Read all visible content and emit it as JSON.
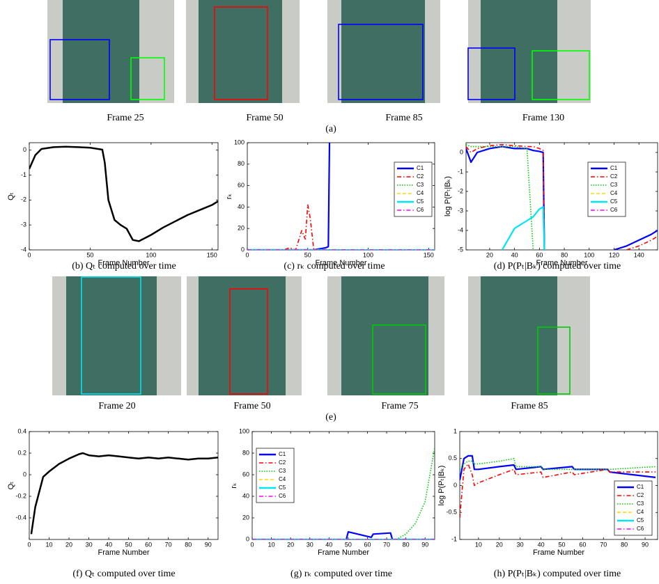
{
  "figure": {
    "row_a": {
      "frames": [
        "Frame 25",
        "Frame 50",
        "Frame 85",
        "Frame 130"
      ],
      "label": "(a)"
    },
    "row_e": {
      "frames": [
        "Frame 20",
        "Frame 50",
        "Frame 75",
        "Frame 85"
      ],
      "label": "(e)"
    }
  },
  "chart_data": [
    {
      "type": "line",
      "caption": "(b) Qₜ computed over time",
      "xlabel": "Frame Number",
      "ylabel": "Qₜ",
      "xlim": [
        0,
        155
      ],
      "ylim": [
        -4,
        0.3
      ],
      "xticks": [
        0,
        50,
        100,
        150
      ],
      "yticks": [
        -4,
        -3,
        -2,
        -1,
        0
      ],
      "x": [
        0,
        5,
        10,
        20,
        30,
        40,
        50,
        60,
        62,
        65,
        70,
        75,
        80,
        85,
        90,
        100,
        110,
        120,
        130,
        140,
        150,
        155
      ],
      "series": [
        {
          "name": null,
          "color": "#000000",
          "style": "solid",
          "values": [
            -0.75,
            -0.2,
            0.05,
            0.12,
            0.14,
            0.12,
            0.1,
            0.02,
            -0.5,
            -2.0,
            -2.8,
            -3.0,
            -3.15,
            -3.6,
            -3.65,
            -3.4,
            -3.1,
            -2.85,
            -2.6,
            -2.4,
            -2.2,
            -2.05
          ]
        }
      ]
    },
    {
      "type": "line",
      "caption": "(c) rₖ computed over time",
      "xlabel": "Frame Number",
      "ylabel": "rₖ",
      "xlim": [
        0,
        155
      ],
      "ylim": [
        0,
        100
      ],
      "xticks": [
        0,
        50,
        100,
        150
      ],
      "yticks": [
        0,
        20,
        40,
        60,
        80,
        100
      ],
      "legend": "right",
      "x": [
        0,
        30,
        35,
        40,
        45,
        48,
        50,
        52,
        55,
        60,
        65,
        67,
        68,
        70,
        100,
        155
      ],
      "series": [
        {
          "name": "C1",
          "color": "#0000ff",
          "style": "solid",
          "values": [
            0,
            0,
            0,
            0,
            0,
            0,
            0,
            0,
            0,
            1,
            2,
            3,
            100,
            null,
            null,
            null
          ]
        },
        {
          "name": "C2",
          "color": "#ff0000",
          "style": "dashdot",
          "values": [
            0,
            0,
            2,
            0,
            18,
            10,
            42,
            30,
            0,
            0,
            0,
            0,
            0,
            0,
            0,
            0
          ]
        },
        {
          "name": "C3",
          "color": "#00cc00",
          "style": "dotted",
          "values": [
            0,
            0,
            0,
            0,
            0,
            0,
            0,
            0,
            0,
            0,
            0,
            0,
            0,
            0,
            0,
            0
          ]
        },
        {
          "name": "C4",
          "color": "#ffd700",
          "style": "dashed",
          "values": [
            0,
            0,
            0,
            0,
            0,
            0,
            0,
            0,
            0,
            0,
            0,
            0,
            0,
            0,
            0,
            0
          ]
        },
        {
          "name": "C5",
          "color": "#00e5ee",
          "style": "solid",
          "values": [
            0,
            0,
            0,
            0,
            0,
            0,
            0,
            0,
            0,
            0,
            0,
            0,
            0,
            0,
            0,
            0
          ]
        },
        {
          "name": "C6",
          "color": "#ff00ff",
          "style": "dashdot",
          "values": [
            0,
            0,
            0,
            0,
            0,
            0,
            0,
            0,
            0,
            0,
            0,
            0,
            0,
            0,
            0,
            0
          ]
        }
      ]
    },
    {
      "type": "line",
      "caption": "(d) P(Pₜ|Bₖ) computed over time",
      "xlabel": "Frame Number",
      "ylabel": "log P(Pₜ|Bₖ)",
      "xlim": [
        1,
        155
      ],
      "ylim": [
        -5,
        0.5
      ],
      "xticks": [
        20,
        40,
        60,
        80,
        100,
        120,
        140
      ],
      "yticks": [
        -5,
        -4,
        -3,
        -2,
        -1,
        0
      ],
      "legend": "right",
      "x": [
        1,
        5,
        10,
        20,
        30,
        40,
        50,
        55,
        60,
        63,
        64,
        65,
        120,
        130,
        140,
        150,
        155
      ],
      "series": [
        {
          "name": "C1",
          "color": "#0000ff",
          "style": "solid",
          "values": [
            0.2,
            -0.5,
            0.0,
            0.2,
            0.3,
            0.2,
            0.2,
            0.1,
            0.05,
            0,
            -5,
            null,
            -5,
            -4.8,
            -4.5,
            -4.2,
            -4.0
          ]
        },
        {
          "name": "C2",
          "color": "#ff0000",
          "style": "dashdot",
          "values": [
            0.3,
            0,
            0.2,
            0.35,
            0.4,
            0.35,
            0.3,
            0.3,
            0.2,
            0.1,
            -5,
            null,
            null,
            -5,
            -4.8,
            -4.5,
            -4.3
          ]
        },
        {
          "name": "C3",
          "color": "#00cc00",
          "style": "dotted",
          "values": [
            0.4,
            0.3,
            0.3,
            0.3,
            0.3,
            0.3,
            0.2,
            -5,
            null,
            null,
            null,
            null,
            null,
            null,
            null,
            null,
            null
          ]
        },
        {
          "name": "C4",
          "color": "#ffd700",
          "style": "dashed",
          "values": [
            null,
            null,
            null,
            null,
            -5,
            -3.9,
            -3.5,
            -3.3,
            -2.9,
            -2.8,
            -5,
            null,
            null,
            null,
            null,
            null,
            null
          ]
        },
        {
          "name": "C5",
          "color": "#00e5ee",
          "style": "solid",
          "values": [
            null,
            null,
            null,
            null,
            -5,
            -3.9,
            -3.5,
            -3.3,
            -2.9,
            -2.8,
            -5,
            null,
            null,
            null,
            null,
            null,
            null
          ]
        },
        {
          "name": "C6",
          "color": "#ff00ff",
          "style": "dashdot",
          "values": [
            null,
            null,
            null,
            null,
            null,
            null,
            null,
            null,
            null,
            null,
            null,
            null,
            null,
            null,
            null,
            null,
            null
          ]
        }
      ]
    },
    {
      "type": "line",
      "caption": "(f) Qₜ computed over time",
      "xlabel": "Frame Number",
      "ylabel": "Qₜ",
      "xlim": [
        0,
        95
      ],
      "ylim": [
        -0.6,
        0.4
      ],
      "xticks": [
        0,
        10,
        20,
        30,
        40,
        50,
        60,
        70,
        80,
        90
      ],
      "yticks": [
        -0.4,
        -0.2,
        0,
        0.2,
        0.4
      ],
      "x": [
        1,
        3,
        7,
        10,
        15,
        20,
        25,
        27,
        30,
        35,
        40,
        45,
        50,
        55,
        60,
        65,
        70,
        75,
        80,
        85,
        90,
        95
      ],
      "series": [
        {
          "name": null,
          "color": "#000000",
          "style": "solid",
          "values": [
            -0.55,
            -0.3,
            -0.02,
            0.03,
            0.1,
            0.15,
            0.19,
            0.2,
            0.18,
            0.17,
            0.18,
            0.17,
            0.16,
            0.15,
            0.16,
            0.15,
            0.16,
            0.15,
            0.14,
            0.15,
            0.15,
            0.16
          ]
        }
      ]
    },
    {
      "type": "line",
      "caption": "(g) rₖ computed over time",
      "xlabel": "Frame Number",
      "ylabel": "rₖ",
      "xlim": [
        0,
        95
      ],
      "ylim": [
        0,
        100
      ],
      "xticks": [
        0,
        10,
        20,
        30,
        40,
        50,
        60,
        70,
        80,
        90
      ],
      "yticks": [
        0,
        20,
        40,
        60,
        80,
        100
      ],
      "legend": "upper left",
      "x": [
        0,
        49,
        50,
        62,
        63,
        72,
        73,
        75,
        80,
        85,
        90,
        95
      ],
      "series": [
        {
          "name": "C1",
          "color": "#0000ff",
          "style": "solid",
          "values": [
            0,
            0,
            7,
            2,
            5,
            6,
            0,
            0,
            0,
            0,
            0,
            0
          ]
        },
        {
          "name": "C2",
          "color": "#ff0000",
          "style": "dashdot",
          "values": [
            0,
            0,
            0,
            0,
            0,
            0,
            0,
            0,
            0,
            0,
            0,
            0
          ]
        },
        {
          "name": "C3",
          "color": "#00cc00",
          "style": "dotted",
          "values": [
            0,
            0,
            0,
            0,
            0,
            0,
            0,
            0,
            5,
            15,
            35,
            85
          ]
        },
        {
          "name": "C4",
          "color": "#ffd700",
          "style": "dashed",
          "values": [
            0,
            0,
            0,
            0,
            0,
            0,
            0,
            0,
            0,
            0,
            0,
            0
          ]
        },
        {
          "name": "C5",
          "color": "#00e5ee",
          "style": "solid",
          "values": [
            0,
            0,
            0,
            0,
            0,
            0,
            0,
            0,
            0,
            0,
            0,
            0
          ]
        },
        {
          "name": "C6",
          "color": "#ff00ff",
          "style": "dashdot",
          "values": [
            0,
            0,
            0,
            0,
            0,
            0,
            0,
            0,
            0,
            0,
            0,
            0
          ]
        }
      ]
    },
    {
      "type": "line",
      "caption": "(h) P(Pₜ|Bₖ) computed over time",
      "xlabel": "Frame Number",
      "ylabel": "log P(Pₜ|Bₖ)",
      "xlim": [
        1,
        96
      ],
      "ylim": [
        -1,
        1
      ],
      "xticks": [
        10,
        20,
        30,
        40,
        50,
        60,
        70,
        80,
        90
      ],
      "yticks": [
        -1,
        -0.5,
        0,
        0.5,
        1
      ],
      "legend": "lower right",
      "x": [
        1,
        3,
        5,
        7,
        8,
        10,
        20,
        27,
        28,
        40,
        41,
        55,
        56,
        72,
        73,
        95
      ],
      "series": [
        {
          "name": "C1",
          "color": "#0000ff",
          "style": "solid",
          "values": [
            0.1,
            0.5,
            0.55,
            0.55,
            0.3,
            0.3,
            0.35,
            0.38,
            0.3,
            0.35,
            0.3,
            0.35,
            0.3,
            0.3,
            0.25,
            0.15
          ]
        },
        {
          "name": "C2",
          "color": "#ff0000",
          "style": "dashdot",
          "values": [
            -0.6,
            0.3,
            0.4,
            0.2,
            0,
            0.05,
            0.2,
            0.3,
            0.2,
            0.25,
            0.15,
            0.25,
            0.2,
            0.3,
            0.25,
            0.25
          ]
        },
        {
          "name": "C3",
          "color": "#00cc00",
          "style": "dotted",
          "values": [
            0.3,
            0.4,
            0.45,
            0.45,
            0.4,
            0.4,
            0.45,
            0.5,
            0.35,
            0.35,
            0.3,
            0.3,
            0.3,
            0.3,
            0.3,
            0.35
          ]
        },
        {
          "name": "C4",
          "color": "#ffd700",
          "style": "dashed",
          "values": [
            null,
            null,
            null,
            null,
            null,
            null,
            null,
            null,
            null,
            null,
            null,
            null,
            null,
            null,
            null,
            null
          ]
        },
        {
          "name": "C5",
          "color": "#00e5ee",
          "style": "solid",
          "values": [
            null,
            null,
            null,
            null,
            null,
            null,
            null,
            null,
            null,
            null,
            null,
            null,
            null,
            null,
            null,
            null
          ]
        },
        {
          "name": "C6",
          "color": "#ff00ff",
          "style": "dashdot",
          "values": [
            null,
            null,
            null,
            null,
            null,
            null,
            null,
            null,
            null,
            null,
            null,
            null,
            null,
            null,
            null,
            null
          ]
        }
      ]
    }
  ]
}
